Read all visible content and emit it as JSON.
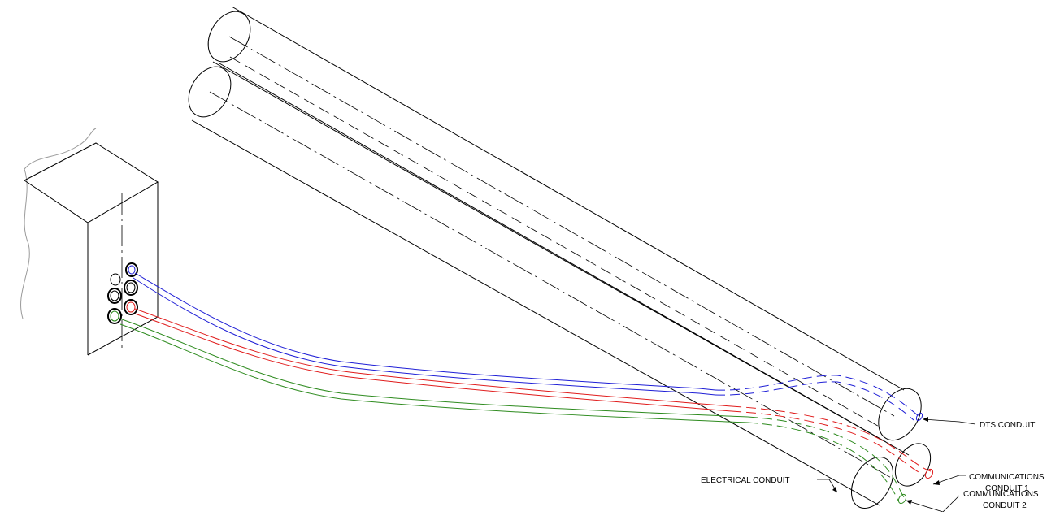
{
  "labels": {
    "dts_conduit": "DTS CONDUIT",
    "comm_conduit_1_line1": "COMMUNICATIONS",
    "comm_conduit_1_line2": "CONDUIT 1",
    "comm_conduit_2_line1": "COMMUNICATIONS",
    "comm_conduit_2_line2": "CONDUIT 2",
    "electrical_conduit": "ELECTRICAL CONDUIT"
  },
  "colors": {
    "dts_cable": "#1f1fd6",
    "comm1_cable": "#e01b1b",
    "comm2_cable": "#2e8b1f",
    "linework": "#000000",
    "enclosure_outline": "#9a9a9a"
  }
}
